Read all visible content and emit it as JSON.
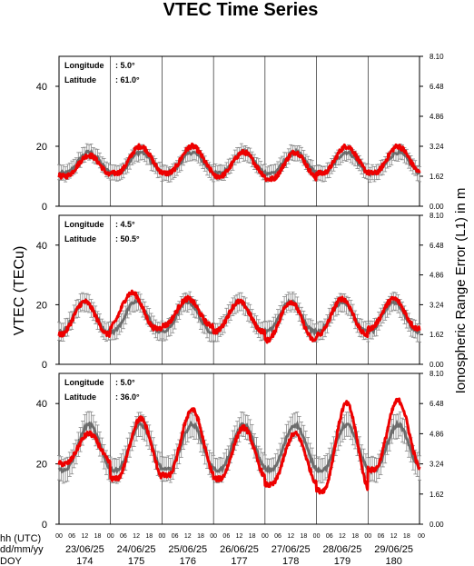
{
  "chart_data": {
    "type": "line",
    "title": "VTEC Time Series",
    "ylabel_left": "VTEC (TECu)",
    "ylabel_right": "Ionospheric Range Error (L1) in m",
    "ylim": [
      0,
      50
    ],
    "yticks_left": [
      "0",
      "20",
      "40"
    ],
    "ylim_right": [
      0,
      8.1
    ],
    "yticks_right": [
      "0.00",
      "1.62",
      "3.24",
      "4.86",
      "6.48",
      "8.10"
    ],
    "x_row_labels": [
      "hh (UTC)",
      "dd/mm/yy",
      "DOY"
    ],
    "hour_ticks": [
      "00",
      "06",
      "12",
      "18"
    ],
    "days": [
      {
        "date": "23/06/25",
        "doy": "174"
      },
      {
        "date": "24/06/25",
        "doy": "175"
      },
      {
        "date": "25/06/25",
        "doy": "176"
      },
      {
        "date": "26/06/25",
        "doy": "177"
      },
      {
        "date": "27/06/25",
        "doy": "178"
      },
      {
        "date": "28/06/25",
        "doy": "179"
      },
      {
        "date": "29/06/25",
        "doy": "180"
      }
    ],
    "grid": "vertical day separators",
    "series_colors": {
      "observed": "#ee0000",
      "reference": "#777777"
    },
    "panels": [
      {
        "longitude_label": "Longitude",
        "longitude_value": ":   5.0°",
        "latitude_label": "Latitude",
        "latitude_value": ": 61.0°",
        "observed": {
          "min": [
            10,
            11,
            11,
            10,
            9,
            11,
            11
          ],
          "max": [
            17,
            20,
            20,
            18,
            18,
            20,
            20
          ],
          "peak_hour": [
            14,
            14,
            14,
            14,
            14,
            14,
            14
          ]
        },
        "reference": {
          "min": 11,
          "max": 18,
          "peak_hour": 14,
          "err": 2.5
        }
      },
      {
        "longitude_label": "Longitude",
        "longitude_value": ":   4.5°",
        "latitude_label": "Latitude",
        "latitude_value": ": 50.5°",
        "observed": {
          "min": [
            10,
            12,
            13,
            11,
            8,
            10,
            12
          ],
          "max": [
            21,
            24,
            22,
            21,
            21,
            22,
            22
          ],
          "peak_hour": [
            12,
            10,
            12,
            12,
            12,
            12,
            12
          ]
        },
        "reference": {
          "min": 11,
          "max": 21,
          "peak_hour": 12,
          "err": 3
        }
      },
      {
        "longitude_label": "Longitude",
        "longitude_value": ":   5.0°",
        "latitude_label": "Latitude",
        "latitude_value": ": 36.0°",
        "observed": {
          "min": [
            20,
            15,
            16,
            15,
            13,
            11,
            18
          ],
          "max": [
            30,
            35,
            38,
            32,
            30,
            40,
            41
          ],
          "peak_hour": [
            14,
            14,
            14,
            14,
            14,
            14,
            14
          ]
        },
        "reference": {
          "min": 18,
          "max": 33,
          "peak_hour": 14,
          "err": 4
        }
      }
    ]
  }
}
